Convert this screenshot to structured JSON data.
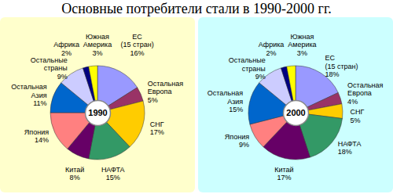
{
  "title": "Основные потребители стали в 1990-2000 гг.",
  "chart_data": [
    {
      "type": "pie",
      "title": "1990",
      "categories": [
        "ЕС (15 стран)",
        "Остальная Европа",
        "СНГ",
        "НАФТА",
        "Китай",
        "Япония",
        "Остальная Азия",
        "Остальные страны",
        "Африка",
        "Южная Америка"
      ],
      "values": [
        16,
        5,
        17,
        15,
        8,
        14,
        11,
        9,
        2,
        3
      ],
      "value_labels": [
        "16%",
        "5%",
        "17%",
        "15%",
        "8%",
        "14%",
        "11%",
        "9%",
        "2%",
        "3%"
      ],
      "colors": [
        "#9999ff",
        "#993366",
        "#ffcc00",
        "#339966",
        "#660066",
        "#ff8080",
        "#0066cc",
        "#ccccff",
        "#000080",
        "#ffff00"
      ],
      "data_labels": true
    },
    {
      "type": "pie",
      "title": "2000",
      "categories": [
        "ЕС (15 стран)",
        "Остальная Европа",
        "СНГ",
        "НАФТА",
        "Китай",
        "Япония",
        "Остальная Азия",
        "Остальные страны",
        "Африка",
        "Южная Америка"
      ],
      "values": [
        18,
        4,
        5,
        18,
        17,
        9,
        15,
        9,
        2,
        3
      ],
      "value_labels": [
        "18%",
        "4%",
        "5%",
        "18%",
        "17%",
        "9%",
        "15%",
        "9%",
        "2%",
        "3%"
      ],
      "colors": [
        "#9999ff",
        "#993366",
        "#ffcc00",
        "#339966",
        "#660066",
        "#ff8080",
        "#0066cc",
        "#ccccff",
        "#000080",
        "#ffff00"
      ],
      "data_labels": true
    }
  ]
}
